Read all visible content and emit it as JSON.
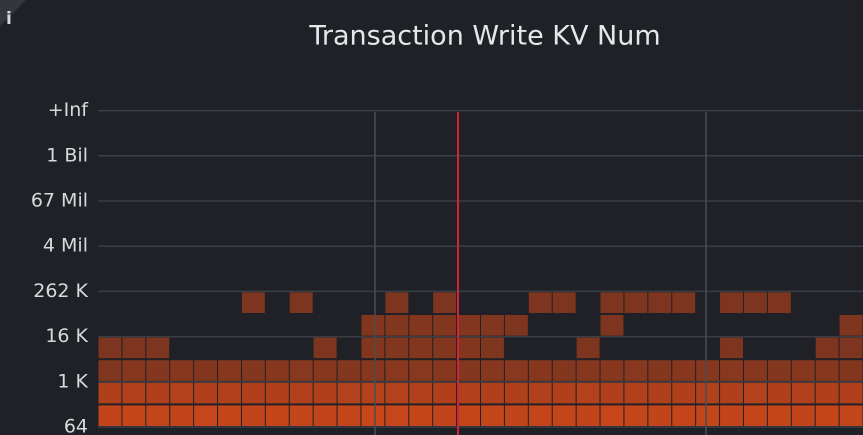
{
  "info_icon": "i",
  "chart_data": {
    "type": "heatmap",
    "title": "Transaction Write KV Num",
    "rows": [
      "64",
      null,
      "1 K",
      null,
      "16 K",
      null,
      "262 K",
      null,
      "4 Mil",
      null,
      "67 Mil",
      null,
      "1 Bil",
      null,
      "+Inf"
    ],
    "color": "#c8461a",
    "grid": true,
    "values": [
      [
        40,
        42,
        41,
        40,
        43,
        41,
        40,
        42,
        41,
        40,
        42,
        44,
        43,
        41,
        40,
        42,
        41,
        40,
        42,
        41,
        40,
        43,
        41,
        40,
        42,
        41,
        40,
        42,
        41,
        40,
        42,
        41
      ],
      [
        30,
        31,
        30,
        32,
        30,
        31,
        30,
        30,
        31,
        30,
        32,
        33,
        32,
        31,
        30,
        31,
        30,
        30,
        31,
        30,
        32,
        30,
        31,
        30,
        30,
        31,
        30,
        32,
        30,
        31,
        30,
        30
      ],
      [
        3,
        6,
        5,
        6,
        4,
        6,
        5,
        6,
        7,
        6,
        5,
        6,
        8,
        7,
        6,
        5,
        6,
        7,
        6,
        5,
        6,
        6,
        7,
        5,
        6,
        6,
        7,
        6,
        5,
        6,
        6,
        4
      ],
      [
        1,
        1,
        1,
        0,
        0,
        0,
        0,
        0,
        0,
        1,
        0,
        4,
        4,
        4,
        4,
        4,
        2,
        0,
        0,
        0,
        1,
        0,
        0,
        0,
        0,
        0,
        1,
        0,
        0,
        0,
        1,
        1
      ],
      [
        0,
        0,
        0,
        0,
        0,
        0,
        0,
        0,
        0,
        0,
        0,
        4,
        4,
        4,
        4,
        4,
        3,
        1,
        0,
        0,
        0,
        1,
        0,
        0,
        0,
        0,
        0,
        0,
        0,
        0,
        0,
        2
      ],
      [
        0,
        0,
        0,
        0,
        0,
        0,
        1,
        0,
        1,
        0,
        0,
        0,
        1,
        0,
        1,
        0,
        0,
        0,
        1,
        1,
        0,
        1,
        1,
        1,
        1,
        0,
        1,
        1,
        1,
        0,
        0,
        0
      ],
      [
        0,
        0,
        0,
        0,
        0,
        0,
        0,
        0,
        0,
        0,
        0,
        0,
        0,
        0,
        0,
        0,
        0,
        0,
        0,
        0,
        0,
        0,
        0,
        0,
        0,
        0,
        0,
        0,
        0,
        0,
        0,
        0
      ],
      [
        0,
        0,
        0,
        0,
        0,
        0,
        0,
        0,
        0,
        0,
        0,
        0,
        0,
        0,
        0,
        0,
        0,
        0,
        0,
        0,
        0,
        0,
        0,
        0,
        0,
        0,
        0,
        0,
        0,
        0,
        0,
        0
      ],
      [
        0,
        0,
        0,
        0,
        0,
        0,
        0,
        0,
        0,
        0,
        0,
        0,
        0,
        0,
        0,
        0,
        0,
        0,
        0,
        0,
        0,
        0,
        0,
        0,
        0,
        0,
        0,
        0,
        0,
        0,
        0,
        0
      ],
      [
        0,
        0,
        0,
        0,
        0,
        0,
        0,
        0,
        0,
        0,
        0,
        0,
        0,
        0,
        0,
        0,
        0,
        0,
        0,
        0,
        0,
        0,
        0,
        0,
        0,
        0,
        0,
        0,
        0,
        0,
        0,
        0
      ],
      [
        0,
        0,
        0,
        0,
        0,
        0,
        0,
        0,
        0,
        0,
        0,
        0,
        0,
        0,
        0,
        0,
        0,
        0,
        0,
        0,
        0,
        0,
        0,
        0,
        0,
        0,
        0,
        0,
        0,
        0,
        0,
        0
      ],
      [
        0,
        0,
        0,
        0,
        0,
        0,
        0,
        0,
        0,
        0,
        0,
        0,
        0,
        0,
        0,
        0,
        0,
        0,
        0,
        0,
        0,
        0,
        0,
        0,
        0,
        0,
        0,
        0,
        0,
        0,
        0,
        0
      ],
      [
        0,
        0,
        0,
        0,
        0,
        0,
        0,
        0,
        0,
        0,
        0,
        0,
        0,
        0,
        0,
        0,
        0,
        0,
        0,
        0,
        0,
        0,
        0,
        0,
        0,
        0,
        0,
        0,
        0,
        0,
        0,
        0
      ],
      [
        0,
        0,
        0,
        0,
        0,
        0,
        0,
        0,
        0,
        0,
        0,
        0,
        0,
        0,
        0,
        0,
        0,
        0,
        0,
        0,
        0,
        0,
        0,
        0,
        0,
        0,
        0,
        0,
        0,
        0,
        0,
        0
      ],
      [
        0,
        0,
        0,
        0,
        0,
        0,
        0,
        0,
        0,
        0,
        0,
        0,
        0,
        0,
        0,
        0,
        0,
        0,
        0,
        0,
        0,
        0,
        0,
        0,
        0,
        0,
        0,
        0,
        0,
        0,
        0,
        0
      ]
    ]
  }
}
